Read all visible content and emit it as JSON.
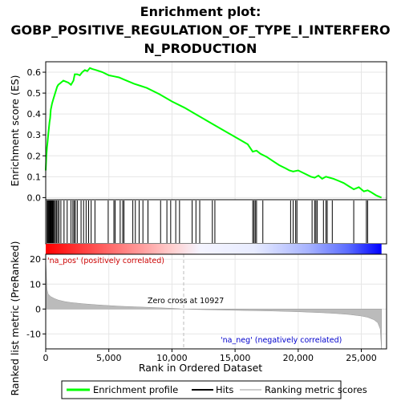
{
  "chart_data": {
    "type": "line",
    "title_line1": "Enrichment plot:",
    "title_line2": "GOBP_POSITIVE_REGULATION_OF_TYPE_I_INTERFERO",
    "title_line3": "N_PRODUCTION",
    "es_ylabel": "Enrichment score (ES)",
    "metric_ylabel_line1": "Ranked list metric (PreRanked)",
    "xlabel": "Rank in Ordered Dataset",
    "xlim": [
      0,
      27000
    ],
    "es_ylim": [
      -0.01,
      0.65
    ],
    "metric_ylim": [
      -16,
      22
    ],
    "x_ticks": [
      0,
      5000,
      10000,
      15000,
      20000,
      25000
    ],
    "x_tick_labels": [
      "0",
      "5,000",
      "10,000",
      "15,000",
      "20,000",
      "25,000"
    ],
    "es_ticks": [
      0.0,
      0.1,
      0.2,
      0.3,
      0.4,
      0.5,
      0.6
    ],
    "es_tick_labels": [
      "0.0",
      "0.1",
      "0.2",
      "0.3",
      "0.4",
      "0.5",
      "0.6"
    ],
    "metric_ticks": [
      -10,
      0,
      10,
      20
    ],
    "metric_tick_labels": [
      "-10",
      "0",
      "10",
      "20"
    ],
    "series": [
      {
        "name": "Enrichment profile",
        "color": "#00ff00",
        "x": [
          0,
          50,
          100,
          150,
          200,
          250,
          300,
          350,
          400,
          500,
          600,
          700,
          800,
          900,
          1000,
          1200,
          1400,
          1600,
          1800,
          2000,
          2200,
          2300,
          2500,
          2700,
          2900,
          3100,
          3300,
          3500,
          3700,
          4000,
          4500,
          5000,
          5400,
          5800,
          6200,
          6600,
          7000,
          7500,
          8000,
          9000,
          10000,
          11000,
          12000,
          13000,
          14000,
          15000,
          16000,
          16400,
          16700,
          17000,
          17500,
          18000,
          18500,
          19000,
          19300,
          19600,
          20000,
          20500,
          21000,
          21300,
          21600,
          21900,
          22200,
          22500,
          22800,
          23200,
          23600,
          24000,
          24400,
          24800,
          25200,
          25500,
          25800,
          26200,
          26600
        ],
        "y": [
          0.13,
          0.2,
          0.24,
          0.27,
          0.3,
          0.33,
          0.36,
          0.38,
          0.42,
          0.45,
          0.47,
          0.49,
          0.51,
          0.53,
          0.54,
          0.55,
          0.56,
          0.555,
          0.55,
          0.54,
          0.56,
          0.59,
          0.59,
          0.585,
          0.6,
          0.61,
          0.605,
          0.62,
          0.615,
          0.61,
          0.6,
          0.585,
          0.58,
          0.575,
          0.565,
          0.555,
          0.545,
          0.535,
          0.525,
          0.495,
          0.46,
          0.43,
          0.395,
          0.36,
          0.325,
          0.29,
          0.255,
          0.22,
          0.225,
          0.21,
          0.195,
          0.175,
          0.155,
          0.14,
          0.13,
          0.125,
          0.13,
          0.115,
          0.1,
          0.095,
          0.105,
          0.09,
          0.1,
          0.095,
          0.09,
          0.08,
          0.07,
          0.055,
          0.04,
          0.05,
          0.03,
          0.035,
          0.025,
          0.01,
          0.0
        ]
      }
    ],
    "hits": [
      100,
      150,
      220,
      280,
      330,
      380,
      430,
      480,
      540,
      600,
      680,
      760,
      850,
      950,
      1050,
      1200,
      1450,
      1700,
      2000,
      2150,
      2250,
      2350,
      2500,
      2800,
      3000,
      3200,
      3400,
      3600,
      3900,
      4950,
      5400,
      5500,
      5900,
      6100,
      6200,
      6900,
      7100,
      7400,
      7700,
      8100,
      9100,
      9600,
      9900,
      10300,
      10600,
      11600,
      11900,
      12200,
      13200,
      13400,
      16400,
      16500,
      16600,
      16700,
      17200,
      19400,
      19600,
      19800,
      19900,
      21100,
      21300,
      21400,
      21500,
      22000,
      22200,
      22300,
      22700,
      24400,
      25400,
      25500
    ],
    "metric_curve": {
      "x": [
        0,
        100,
        200,
        400,
        700,
        1000,
        1500,
        2000,
        3000,
        4000,
        5000,
        6000,
        7000,
        8000,
        9000,
        10000,
        10927,
        12000,
        14000,
        16000,
        18000,
        20000,
        22000,
        23000,
        24000,
        25000,
        25500,
        26000,
        26300,
        26500,
        26600
      ],
      "y": [
        20,
        8,
        6,
        5,
        4.2,
        3.6,
        3.0,
        2.6,
        2.1,
        1.7,
        1.4,
        1.1,
        0.9,
        0.7,
        0.5,
        0.3,
        0.0,
        -0.2,
        -0.4,
        -0.6,
        -0.8,
        -1.1,
        -1.5,
        -1.8,
        -2.2,
        -2.8,
        -3.3,
        -4.3,
        -5.5,
        -8,
        -16
      ]
    },
    "zero_cross": 10927,
    "zero_cross_label": "Zero cross at 10927",
    "pos_label": "'na_pos' (positively correlated)",
    "neg_label": "'na_neg' (negatively correlated)",
    "legend": {
      "placement": "bottom",
      "items": [
        "Enrichment profile",
        "Hits",
        "Ranking metric scores"
      ]
    },
    "colors": {
      "profile": "#00ff00",
      "hit": "#000000",
      "metric_fill": "#bbbbbb",
      "pos": "#ff0000",
      "neg": "#0000ff"
    }
  }
}
